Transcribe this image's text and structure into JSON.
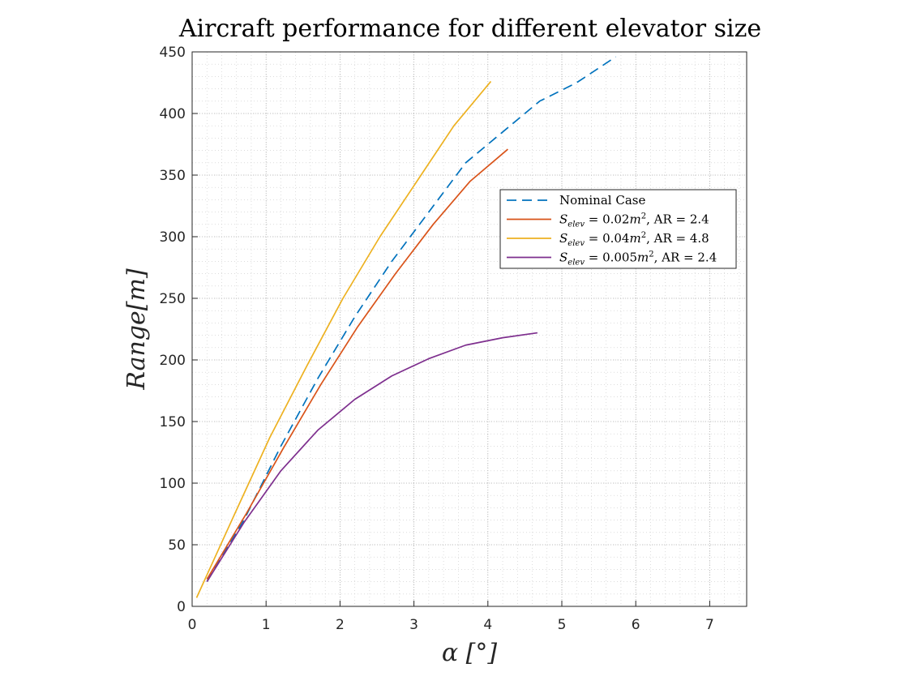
{
  "chart_data": {
    "type": "line",
    "title": "Aircraft performance for different elevator size",
    "xlabel": "α [°]",
    "ylabel": "Range[m]",
    "xlim": [
      0,
      7.5
    ],
    "ylim": [
      0,
      450
    ],
    "xticks": [
      0,
      1,
      2,
      3,
      4,
      5,
      6,
      7
    ],
    "yticks": [
      0,
      50,
      100,
      150,
      200,
      250,
      300,
      350,
      400,
      450
    ],
    "grid": true,
    "minor_grid": true,
    "legend_position": "right",
    "series": [
      {
        "name": "Nominal Case",
        "color": "#0072BD",
        "dash": "dashed",
        "x": [
          0.2,
          0.7,
          1.2,
          1.7,
          2.2,
          2.7,
          3.2,
          3.7,
          4.2,
          4.7,
          5.2,
          5.73
        ],
        "y": [
          20,
          70,
          130,
          185,
          235,
          280,
          320,
          360,
          385,
          410,
          425,
          446
        ]
      },
      {
        "name": "Selev = 0.02m², AR = 2.4",
        "legend_parts": [
          "S",
          "elev",
          " = 0.02",
          "m",
          "2",
          ", AR = 2.4"
        ],
        "color": "#D95319",
        "dash": "solid",
        "x": [
          0.2,
          0.73,
          1.23,
          1.74,
          2.24,
          2.75,
          3.26,
          3.76,
          4.27
        ],
        "y": [
          22,
          75,
          128,
          180,
          227,
          270,
          310,
          345,
          371
        ]
      },
      {
        "name": "Selev = 0.04m², AR = 4.8",
        "legend_parts": [
          "S",
          "elev",
          " = 0.04",
          "m",
          "2",
          ", AR = 4.8"
        ],
        "color": "#EDB120",
        "dash": "solid",
        "x": [
          0.06,
          0.56,
          1.05,
          1.55,
          2.04,
          2.54,
          3.04,
          3.54,
          4.04
        ],
        "y": [
          7,
          73,
          137,
          195,
          250,
          300,
          345,
          390,
          426
        ]
      },
      {
        "name": "Selev = 0.005m², AR = 2.4",
        "legend_parts": [
          "S",
          "elev",
          " = 0.005",
          "m",
          "2",
          ", AR = 2.4"
        ],
        "color": "#7E2F8E",
        "dash": "solid",
        "x": [
          0.2,
          0.7,
          1.2,
          1.7,
          2.2,
          2.7,
          3.2,
          3.7,
          4.2,
          4.67
        ],
        "y": [
          20,
          68,
          110,
          143,
          168,
          187,
          201,
          212,
          218,
          222
        ]
      }
    ]
  }
}
